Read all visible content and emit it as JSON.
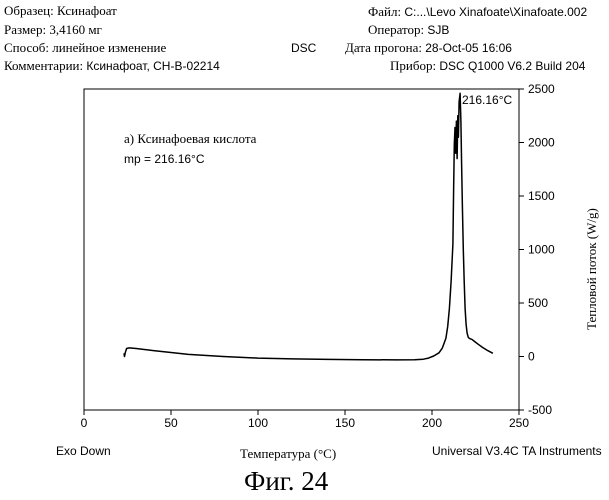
{
  "header": {
    "sample_label": "Образец:",
    "sample_value": "Ксинафоат",
    "size_label": "Размер:",
    "size_value": "3,4160 мг",
    "method_label": "Способ:",
    "method_value": "линейное изменение",
    "comment_label": "Комментарии:",
    "comment_value": "Ксинафоат, CH-B-02214",
    "technique": "DSC",
    "file_label": "Файл:",
    "file_value": "C:...\\Levo Xinafoate\\Xinafoate.002",
    "operator_label": "Оператор:",
    "operator_value": "SJB",
    "run_date_label": "Дата прогона:",
    "run_date_value": "28-Oct-05 16:06",
    "instrument_label": "Прибор:",
    "instrument_value": "DSC Q1000 V6.2 Build 204"
  },
  "footer": {
    "exo": "Exo Down",
    "software": "Universal V3.4C TA Instruments",
    "figure": "Фиг. 24"
  },
  "chart_data": {
    "type": "line",
    "xlabel": "Температура (°C)",
    "ylabel": "Тепловой поток (W/g)",
    "xlim": [
      0,
      250
    ],
    "ylim": [
      -500,
      2500
    ],
    "x_ticks": [
      0,
      50,
      100,
      150,
      200,
      250
    ],
    "y_ticks": [
      -500,
      0,
      500,
      1000,
      1500,
      2000,
      2500
    ],
    "annotations": {
      "line1": "а) Ксинафоевая кислота",
      "line2": "mp = 216.16°C",
      "peak_label": "216.16°C"
    },
    "grid": false,
    "series": [
      {
        "x": [
          23.0,
          23.3,
          23.8,
          24.5,
          26,
          30,
          40,
          60,
          80,
          100,
          120,
          140,
          160,
          180,
          190,
          195,
          198,
          201,
          204,
          206,
          208,
          209,
          210,
          211,
          212.0,
          212.4,
          212.8,
          213.2,
          213.6,
          214.0,
          214.4,
          214.8,
          215.2,
          215.6,
          216.16,
          216.6,
          217.0,
          217.5,
          218.0,
          218.5,
          219.0,
          219.6,
          220.2,
          220.8,
          221.4,
          222.0,
          223.0,
          224.5,
          226.5,
          229.0,
          232.0,
          235.0
        ],
        "y": [
          30,
          0,
          40,
          75,
          80,
          75,
          55,
          20,
          0,
          -15,
          -22,
          -27,
          -30,
          -32,
          -30,
          -25,
          -15,
          5,
          35,
          80,
          170,
          280,
          450,
          700,
          1050,
          1550,
          1980,
          2140,
          1900,
          2200,
          1850,
          2250,
          2050,
          2380,
          2460,
          2200,
          1800,
          1400,
          1000,
          700,
          450,
          300,
          220,
          180,
          170,
          165,
          160,
          140,
          115,
          85,
          55,
          30
        ]
      }
    ]
  }
}
